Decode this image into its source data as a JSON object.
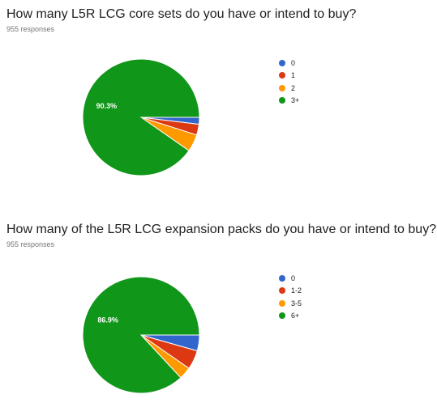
{
  "chart_data": [
    {
      "type": "pie",
      "title": "How many L5R LCG core sets do you have or intend to buy?",
      "subtitle": "955 responses",
      "categories": [
        "0",
        "1",
        "2",
        "3+"
      ],
      "values": [
        1.9,
        3.0,
        4.8,
        90.3
      ],
      "colors": [
        "#3366cc",
        "#dc3912",
        "#ff9900",
        "#109618"
      ],
      "slice_labels": [
        "",
        "",
        "",
        "90.3%"
      ],
      "legend_position": "right"
    },
    {
      "type": "pie",
      "title": "How many of the L5R LCG expansion packs do you have or intend to buy?",
      "subtitle": "955 responses",
      "categories": [
        "0",
        "1-2",
        "3-5",
        "6+"
      ],
      "values": [
        4.4,
        5.3,
        3.4,
        86.9
      ],
      "colors": [
        "#3366cc",
        "#dc3912",
        "#ff9900",
        "#109618"
      ],
      "slice_labels": [
        "",
        "",
        "",
        "86.9%"
      ],
      "legend_position": "right"
    }
  ]
}
